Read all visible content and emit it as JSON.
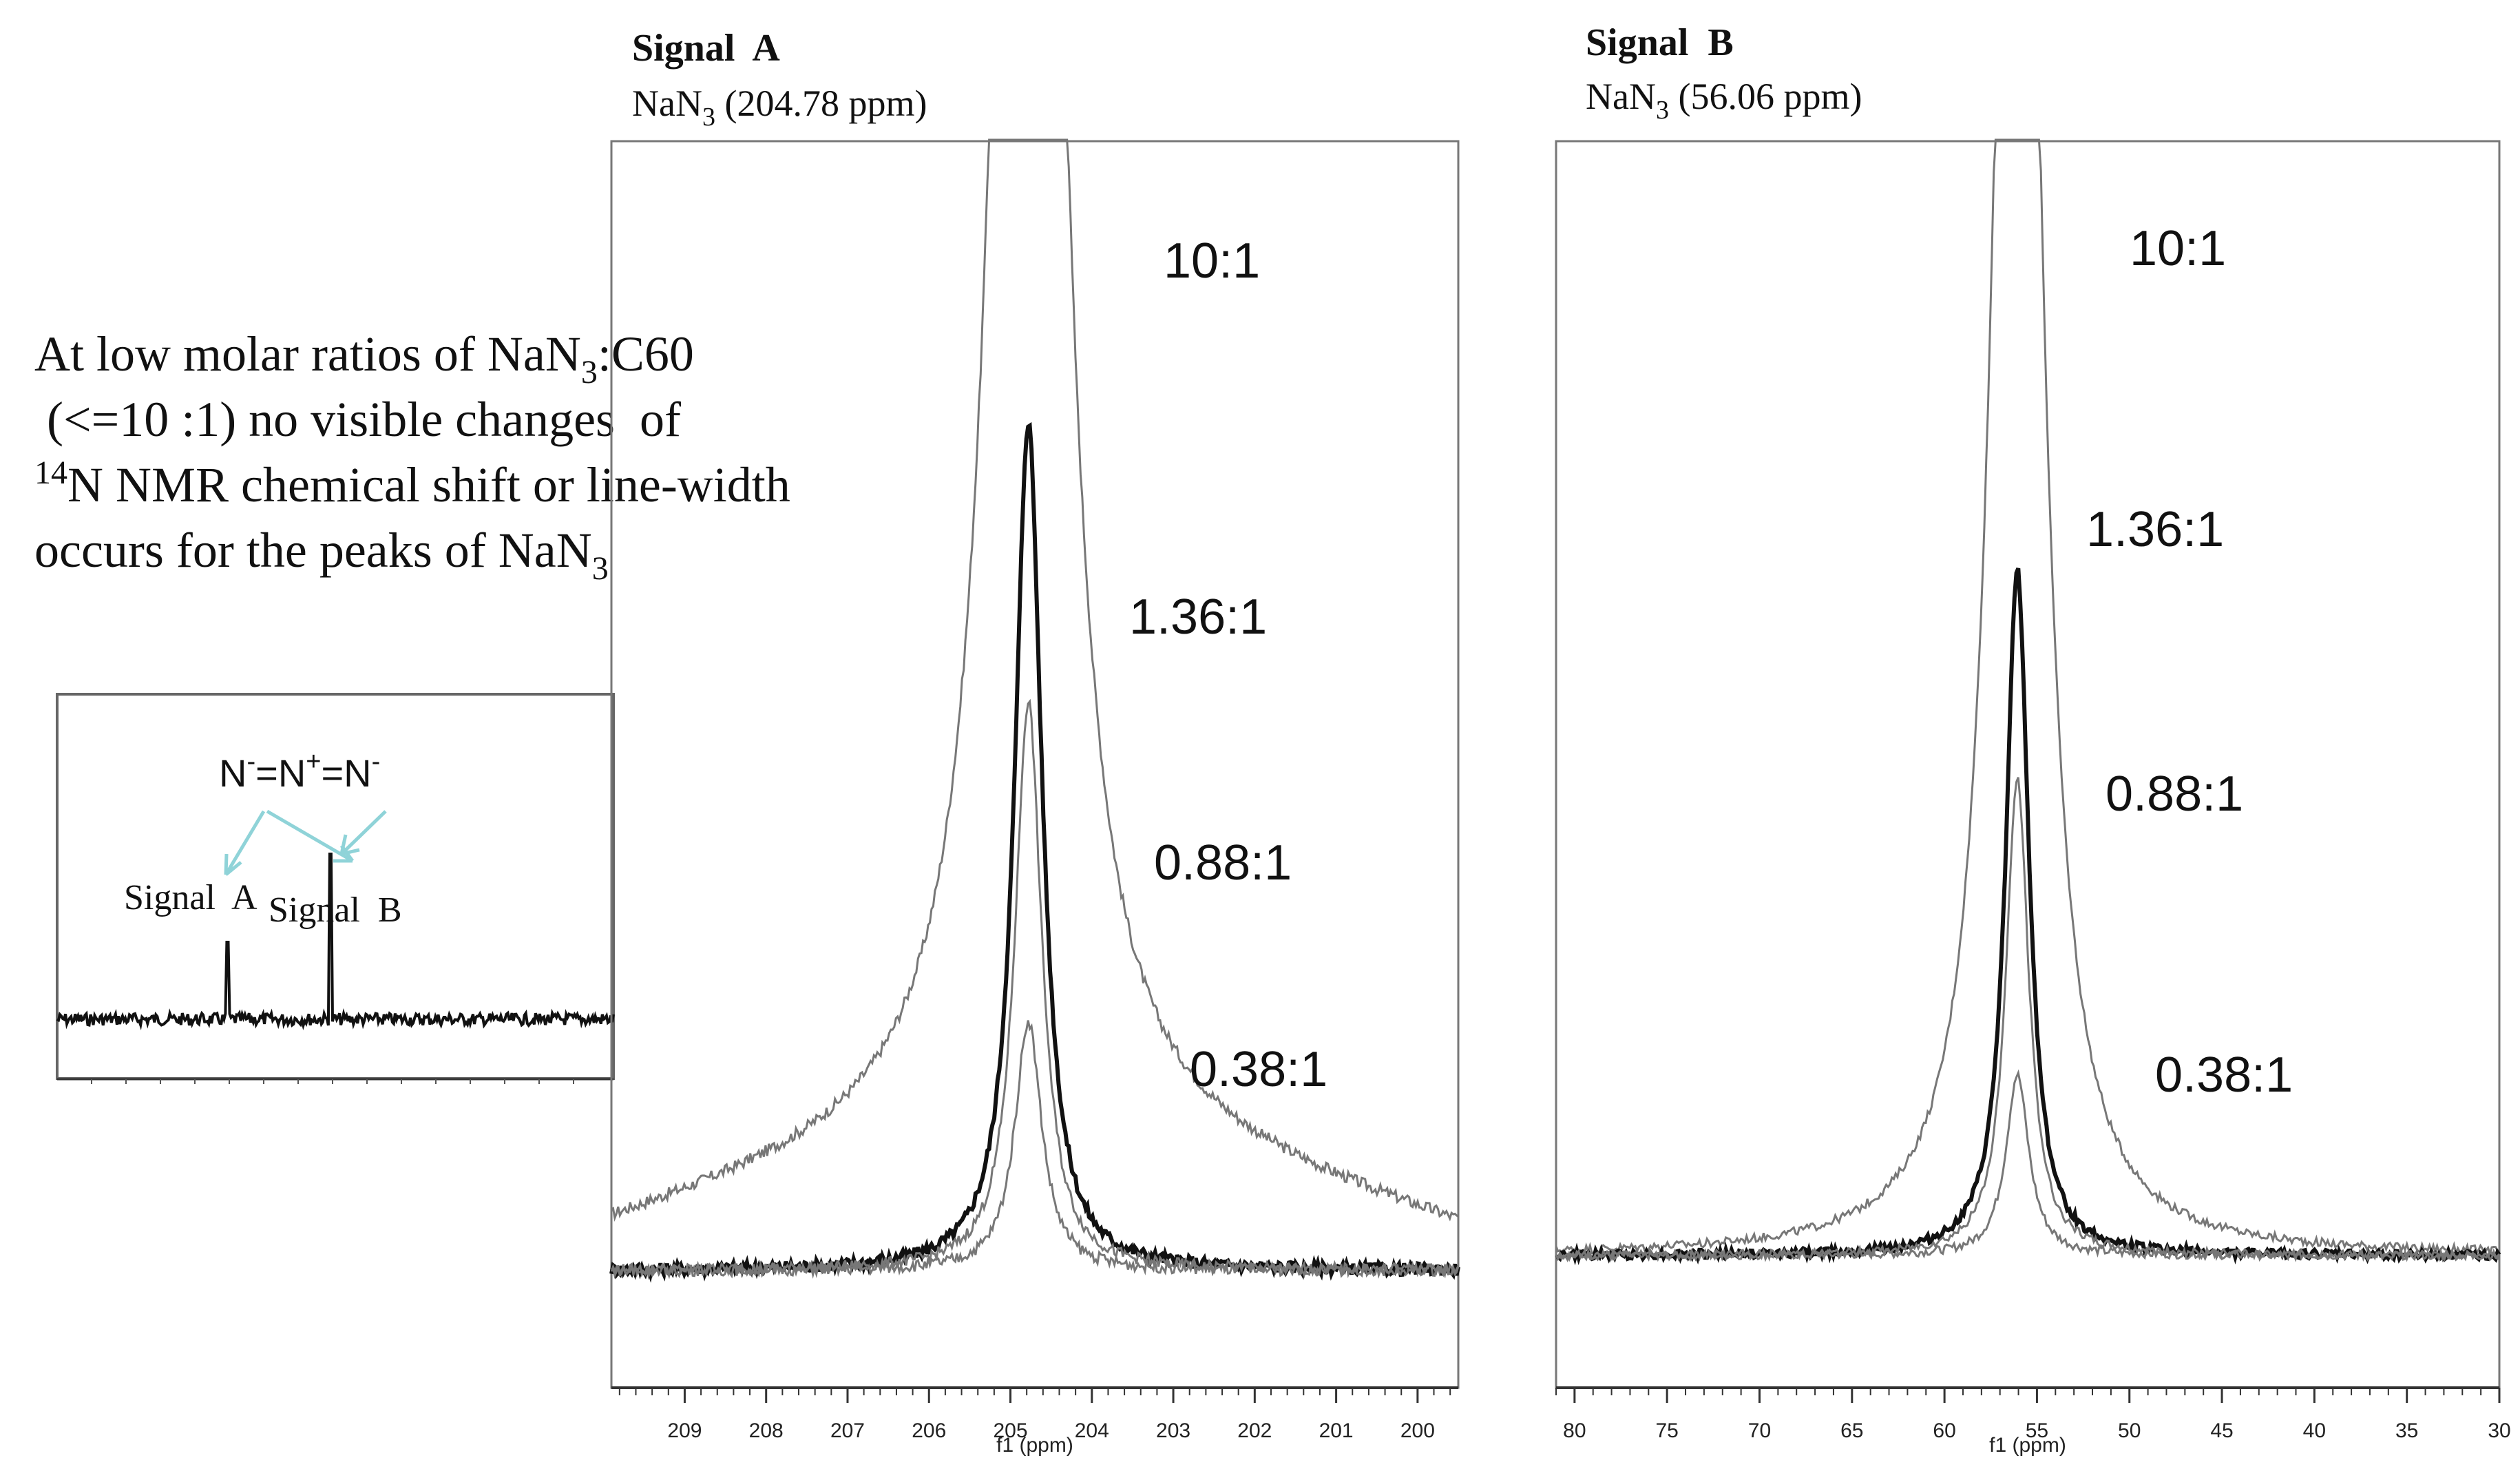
{
  "annotation": {
    "line1": {
      "pre": "At low molar ratios of NaN",
      "sub": "3",
      "post": ":C60"
    },
    "line2": " (<=10 :1) no visible changes  of",
    "line3": {
      "sup": "14",
      "post": "N NMR chemical shift or line-width"
    },
    "line4": {
      "pre": "occurs for the peaks of NaN",
      "sub": "3"
    }
  },
  "colors": {
    "background": "#ffffff",
    "axis": "#555555",
    "trace_dark": "#111111",
    "trace_gray": "#777777",
    "arrow": "#8fd3d8"
  },
  "inset": {
    "title": {
      "p1": "N",
      "s1": "-",
      "p2": "=N",
      "s2": "+",
      "p3": "=N",
      "s3": "-"
    },
    "signal_a_label": "Signal  A",
    "signal_b_label": "Signal  B"
  },
  "panels": [
    {
      "id": "signal-a",
      "title": "Signal  A",
      "subtitle": {
        "pre": "NaN",
        "sub": "3",
        "post": " (204.78 ppm)"
      },
      "xlabel": "f1 (ppm)",
      "xlim": [
        209.9,
        199.5
      ],
      "ticks": [
        209,
        208,
        207,
        206,
        205,
        204,
        203,
        202,
        201,
        200
      ],
      "peak_ppm": 204.78,
      "ratio_labels": [
        "10:1",
        "1.36:1",
        "0.88:1",
        "0.38:1"
      ]
    },
    {
      "id": "signal-b",
      "title": "Signal  B",
      "subtitle": {
        "pre": "NaN",
        "sub": "3",
        "post": " (56.06 ppm)"
      },
      "xlabel": "f1 (ppm)",
      "xlim": [
        81,
        30
      ],
      "ticks": [
        80,
        75,
        70,
        65,
        60,
        55,
        50,
        45,
        40,
        35,
        30
      ],
      "peak_ppm": 56.06,
      "ratio_labels": [
        "10:1",
        "1.36:1",
        "0.88:1",
        "0.38:1"
      ]
    }
  ],
  "chart_data": [
    {
      "type": "line",
      "title": "Signal  A",
      "subtitle": "NaN3 (204.78 ppm)",
      "xlabel": "f1 (ppm)",
      "ylabel": "",
      "xlim": [
        209.9,
        199.5
      ],
      "x_inverted": true,
      "ylim": [
        0,
        1.2
      ],
      "series": [
        {
          "name": "10:1",
          "center": 204.78,
          "height": 3.0,
          "baseline": 0.13,
          "color": "#777777"
        },
        {
          "name": "1.36:1",
          "center": 204.78,
          "height": 0.85,
          "baseline": 0.0,
          "color": "#111111"
        },
        {
          "name": "0.88:1",
          "center": 204.78,
          "height": 0.57,
          "baseline": 0.0,
          "color": "#777777"
        },
        {
          "name": "0.38:1",
          "center": 204.78,
          "height": 0.25,
          "baseline": 0.0,
          "color": "#777777"
        }
      ]
    },
    {
      "type": "line",
      "title": "Signal  B",
      "subtitle": "NaN3 (56.06 ppm)",
      "xlabel": "f1 (ppm)",
      "ylabel": "",
      "xlim": [
        81,
        30
      ],
      "x_inverted": true,
      "ylim": [
        0,
        1.2
      ],
      "series": [
        {
          "name": "10:1",
          "center": 56.06,
          "height": 3.0,
          "baseline": 0.0,
          "color": "#777777"
        },
        {
          "name": "1.36:1",
          "center": 56.06,
          "height": 0.95,
          "baseline": 0.0,
          "color": "#111111"
        },
        {
          "name": "0.88:1",
          "center": 56.06,
          "height": 0.66,
          "baseline": 0.0,
          "color": "#777777"
        },
        {
          "name": "0.38:1",
          "center": 56.06,
          "height": 0.25,
          "baseline": 0.0,
          "color": "#777777"
        }
      ]
    }
  ]
}
